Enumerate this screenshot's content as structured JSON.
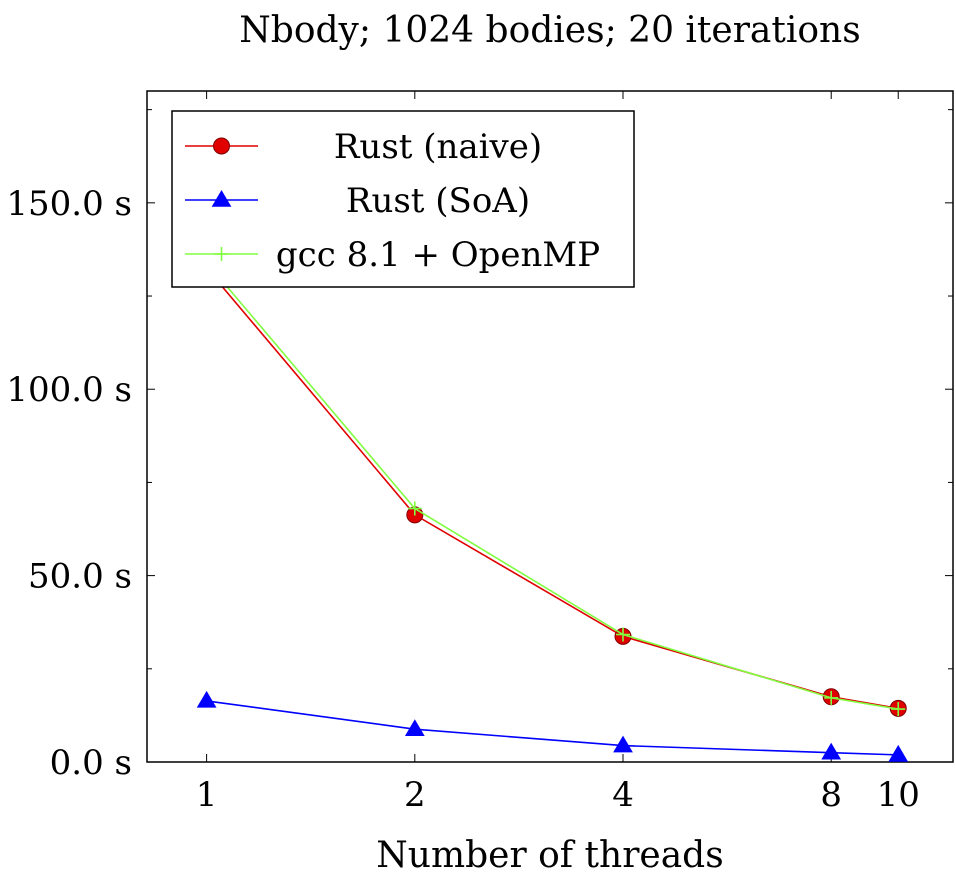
{
  "chart_data": {
    "type": "line",
    "title": "Nbody; 1024 bodies; 20 iterations",
    "xlabel": "Number of threads",
    "ylabel": "",
    "x": [
      1,
      2,
      4,
      8,
      10
    ],
    "xtick_labels": [
      "1",
      "2",
      "4",
      "8",
      "10"
    ],
    "xscale": "log",
    "xlim": [
      0.82,
      12.0
    ],
    "ylim": [
      0,
      180
    ],
    "yticks": [
      0,
      50,
      100,
      150
    ],
    "ytick_labels": [
      "0.0 s",
      "50.0 s",
      "100.0 s",
      "150.0 s"
    ],
    "grid": false,
    "legend_position": "top-left",
    "series": [
      {
        "name": "Rust (naive)",
        "color": "#e00000",
        "marker": "circle",
        "values": [
          132.5,
          66.3,
          33.7,
          17.5,
          14.4
        ]
      },
      {
        "name": "Rust (SoA)",
        "color": "#0000ff",
        "marker": "triangle",
        "values": [
          16.4,
          8.8,
          4.4,
          2.5,
          1.9
        ]
      },
      {
        "name": "gcc 8.1 + OpenMP",
        "color": "#80ff40",
        "marker": "plus",
        "values": [
          134.0,
          68.0,
          34.2,
          17.2,
          14.2
        ]
      }
    ]
  }
}
